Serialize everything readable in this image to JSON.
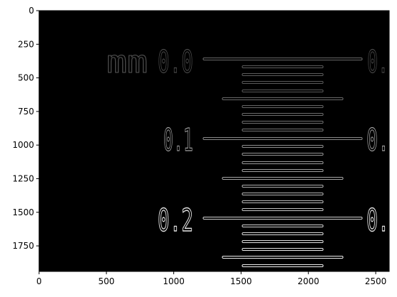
{
  "image_panel": {
    "x_ticks": [
      "0",
      "500",
      "1000",
      "1500",
      "2000",
      "2500"
    ],
    "y_ticks": [
      "0",
      "250",
      "500",
      "750",
      "1000",
      "1250",
      "1500",
      "1750"
    ],
    "labels": {
      "mm": "mm",
      "v1": "0.0",
      "v2": "0.",
      "v3": "0.1",
      "v4": "0.",
      "v5": "0.2",
      "v6": "0."
    }
  }
}
